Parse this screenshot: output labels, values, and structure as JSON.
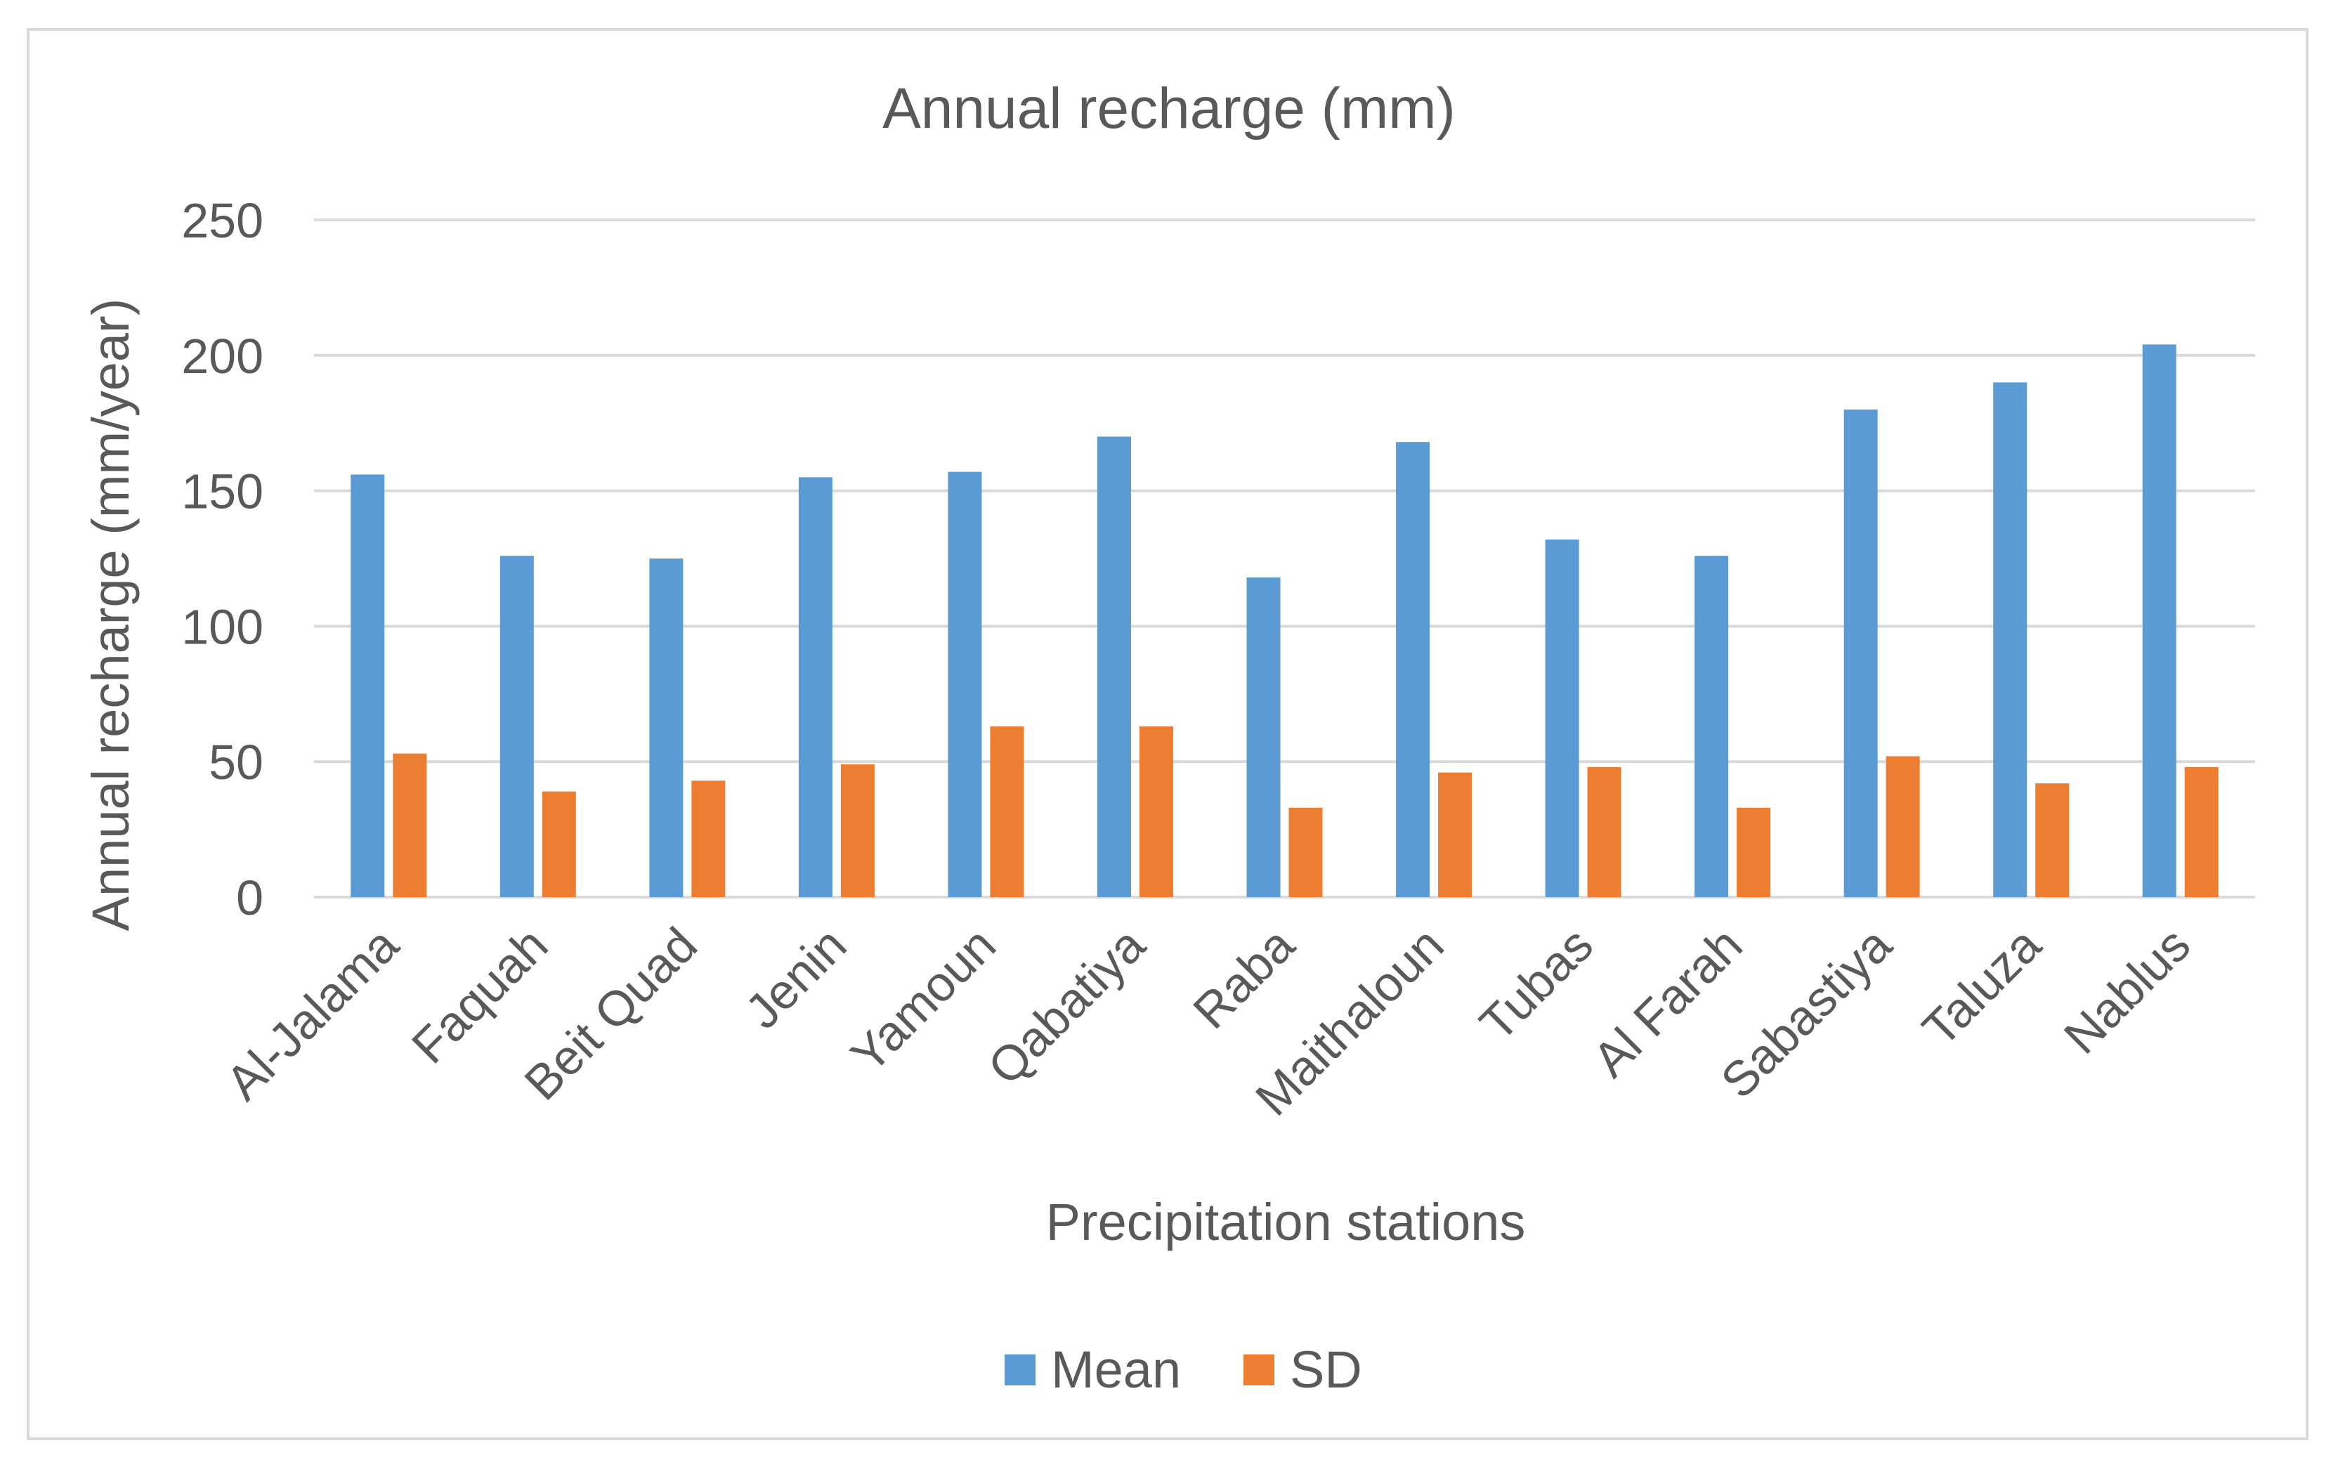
{
  "chart_data": {
    "type": "bar",
    "title": "Annual recharge (mm)",
    "xlabel": "Precipitation stations",
    "ylabel": "Annual recharge (mm/year)",
    "ylim": [
      0,
      250
    ],
    "yticks": [
      0,
      50,
      100,
      150,
      200,
      250
    ],
    "grid": true,
    "legend_position": "bottom",
    "categories": [
      "Al-Jalama",
      "Faquah",
      "Beit Quad",
      "Jenin",
      "Yamoun",
      "Qabatiya",
      "Raba",
      "Maithaloun",
      "Tubas",
      "Al Farah",
      "Sabastiya",
      "Taluza",
      "Nablus"
    ],
    "series": [
      {
        "name": "Mean",
        "color": "#5b9bd5",
        "values": [
          156,
          126,
          125,
          155,
          157,
          170,
          118,
          168,
          132,
          126,
          180,
          190,
          204
        ]
      },
      {
        "name": "SD",
        "color": "#ed7d31",
        "values": [
          53,
          39,
          43,
          49,
          63,
          63,
          33,
          46,
          48,
          33,
          52,
          42,
          48
        ]
      }
    ]
  }
}
